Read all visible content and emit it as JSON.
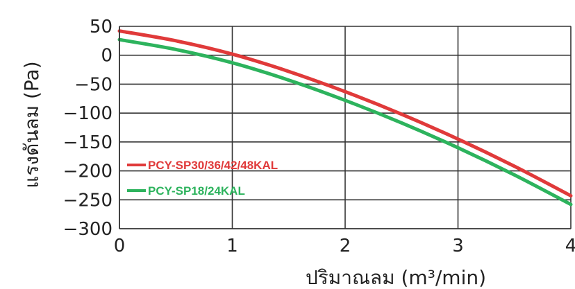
{
  "chart_data": {
    "type": "line",
    "title": "",
    "xlabel": "ปริมาณลม (m³/min)",
    "ylabel": "แรงดันลม (Pa)",
    "xlim": [
      0,
      4
    ],
    "ylim": [
      -300,
      50
    ],
    "xticks": [
      0,
      1,
      2,
      3,
      4
    ],
    "xtick_labels": [
      "0",
      "1",
      "2",
      "3",
      "4"
    ],
    "yticks": [
      50,
      0,
      -50,
      -100,
      -150,
      -200,
      -250,
      -300
    ],
    "ytick_labels": [
      "50",
      "0",
      "−50",
      "−100",
      "−150",
      "−200",
      "−250",
      "−300"
    ],
    "grid": true,
    "legend_position": "lower-left",
    "series": [
      {
        "name": "PCY-SP30/36/42/48KAL",
        "color": "#e03a3a",
        "x": [
          0,
          0.5,
          1,
          1.5,
          2,
          2.5,
          3,
          3.5,
          4
        ],
        "y": [
          42,
          25,
          2,
          -28,
          -63,
          -102,
          -145,
          -192,
          -243
        ]
      },
      {
        "name": "PCY-SP18/24KAL",
        "color": "#2db35d",
        "x": [
          0,
          0.5,
          1,
          1.5,
          2,
          2.5,
          3,
          3.5,
          4
        ],
        "y": [
          27,
          10,
          -13,
          -43,
          -78,
          -117,
          -160,
          -207,
          -258
        ]
      }
    ]
  }
}
